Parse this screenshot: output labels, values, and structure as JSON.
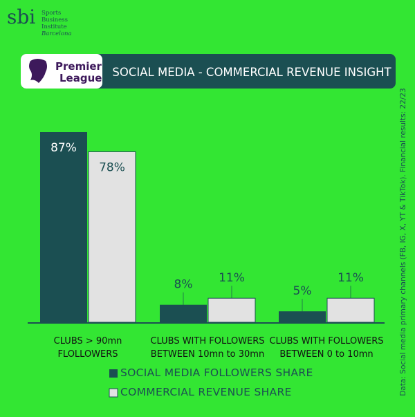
{
  "brand": {
    "mark": "sbi",
    "name_lines": [
      "Sports",
      "Business",
      "Institute",
      "Barcelona"
    ]
  },
  "league_logo": {
    "text_lines": [
      "Premier",
      "League"
    ]
  },
  "chart_data": {
    "type": "bar",
    "title": "SOCIAL MEDIA - COMMERCIAL REVENUE INSIGHT",
    "note": "Data: Social media primary channels (FB, IG, X, YT & TikTok). Financial results: 22/23",
    "categories": [
      "CLUBS > 90mn\nFLOLLOWERS",
      "CLUBS WITH FOLLOWERS\nBETWEEN 10mn to 30mn",
      "CLUBS WITH FOLLOWERS\nBETWEEN 0 to 10mn"
    ],
    "series": [
      {
        "name": "SOCIAL MEDIA FOLLOWERS SHARE",
        "color": "#1b4f52",
        "values": [
          87,
          8,
          5
        ],
        "value_labels": [
          "87%",
          "8%",
          "5%"
        ]
      },
      {
        "name": "COMMERCIAL REVENUE SHARE",
        "color": "#e2e2e2",
        "values": [
          78,
          11,
          11
        ],
        "value_labels": [
          "78%",
          "11%",
          "11%"
        ]
      }
    ],
    "legend": "bottom"
  }
}
